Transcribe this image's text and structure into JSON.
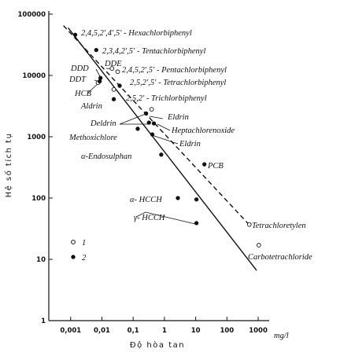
{
  "chart_data": {
    "type": "scatter",
    "xlabel": "Độ hòa tan",
    "xunit": "mg/l",
    "ylabel": "Hệ số tích tụ",
    "xlog": true,
    "ylog": true,
    "xlim": [
      0.0002,
      2000
    ],
    "ylim": [
      1,
      100000
    ],
    "xticks": [
      {
        "value": 0.001,
        "label": "0,001"
      },
      {
        "value": 0.01,
        "label": "0,01"
      },
      {
        "value": 0.1,
        "label": "0,1"
      },
      1,
      10,
      100,
      1000
    ],
    "yticks": [
      1,
      10,
      100,
      1000,
      10000,
      100000
    ],
    "series": [
      {
        "name": "1",
        "color": "#111111",
        "marker": "open",
        "x": [
          0.021,
          0.032,
          0.0075,
          0.024,
          0.39,
          520,
          1050
        ],
        "values": [
          13000,
          11500,
          7600,
          5900,
          2800,
          37,
          17
        ]
      },
      {
        "name": "2",
        "color": "#111111",
        "marker": "filled",
        "x": [
          0.0014,
          0.0066,
          0.009,
          0.0085,
          0.037,
          0.024,
          0.26,
          0.32,
          0.46,
          0.14,
          0.41,
          0.79,
          19,
          2.7,
          10.6,
          10.6
        ],
        "values": [
          46000,
          26000,
          9100,
          8000,
          6800,
          4100,
          2400,
          1700,
          1650,
          1350,
          1090,
          510,
          355,
          100,
          95,
          39
        ]
      }
    ],
    "lines": [
      {
        "style": "solid",
        "x": [
          0.00083,
          890
        ],
        "values": [
          60000,
          6.6
        ]
      },
      {
        "style": "dashed",
        "x": [
          0.00059,
          590
        ],
        "values": [
          65000,
          34
        ]
      }
    ],
    "annotations": [
      "2,4,5,2′,4′,5′ - Hexachlorbiphenyl",
      "2,3,4,2′,5′ - Tentachlorbiphenyl",
      "DDE",
      "2,4,5,2′,5′ - Pentachlorbiphenyl",
      "DDD",
      "DDT",
      "2,5,2′,5′ - Tetrachlorbiphenyl",
      "HCB",
      "2,5,2′ - Trichlorbiphenyl",
      "Aldrin",
      "Eldrin",
      "Deldrin",
      "Heptachlorenoxide",
      "Methoxichlore",
      "Eldrin",
      "α-Endosulphan",
      "PCB",
      "α- HCCH",
      "γ- HCCH",
      "Tetrachloretylen",
      "Carbotetrachloride"
    ]
  }
}
